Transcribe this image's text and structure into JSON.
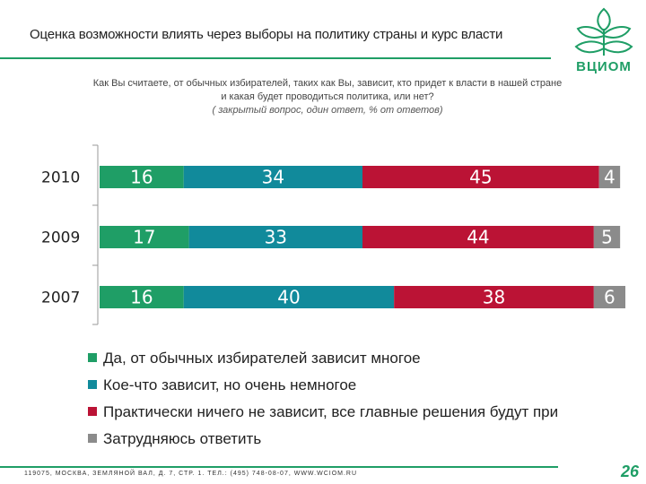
{
  "header": {
    "title": "Оценка возможности влиять через выборы на политику страны и курс власти",
    "logo_text": "ВЦИОМ"
  },
  "question": {
    "text": "Как Вы считаете, от обычных избирателей, таких как Вы, зависит, кто придет к власти в нашей стране  и какая будет проводиться политика, или нет?",
    "note": "( закрытый вопрос, один ответ, % от ответов)"
  },
  "colors": {
    "green": "#1f9e66",
    "teal": "#118a9b",
    "red": "#bb1335",
    "gray": "#8b8b8b"
  },
  "chart_data": {
    "type": "bar",
    "orientation": "horizontal",
    "stacked": true,
    "categories": [
      "2010",
      "2009",
      "2007"
    ],
    "series": [
      {
        "name": "Да, от обычных избирателей зависит многое",
        "color": "#1f9e66",
        "values": [
          16,
          17,
          16
        ]
      },
      {
        "name": "Кое-что зависит, но очень немногое",
        "color": "#118a9b",
        "values": [
          34,
          33,
          40
        ]
      },
      {
        "name": "Практически ничего не зависит, все главные решения будут при",
        "color": "#bb1335",
        "values": [
          45,
          44,
          38
        ]
      },
      {
        "name": "Затрудняюсь ответить",
        "color": "#8b8b8b",
        "values": [
          4,
          5,
          6
        ]
      }
    ],
    "xlim": [
      0,
      100
    ],
    "legend_position": "bottom"
  },
  "footer": {
    "text": "119075, МОСКВА, ЗЕМЛЯНОЙ ВАЛ, Д. 7, СТР. 1. ТЕЛ.: (495) 748-08-07,  WWW.WCIOM.RU",
    "page": "26"
  }
}
